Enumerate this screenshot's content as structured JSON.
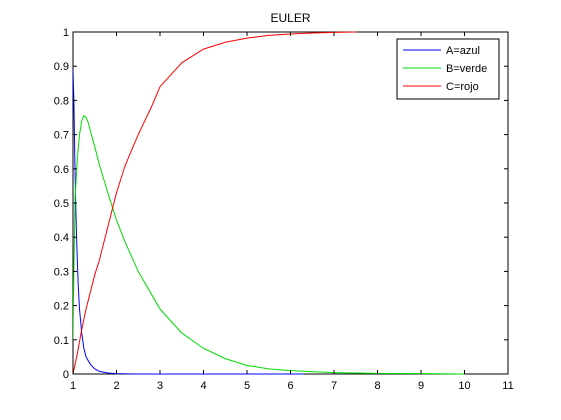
{
  "chart_data": {
    "type": "line",
    "title": "EULER",
    "xlabel": "",
    "ylabel": "",
    "xlim": [
      1,
      11
    ],
    "ylim": [
      0,
      1
    ],
    "xticks": [
      1,
      2,
      3,
      4,
      5,
      6,
      7,
      8,
      9,
      10,
      11
    ],
    "yticks": [
      0,
      0.1,
      0.2,
      0.3,
      0.4,
      0.5,
      0.6,
      0.7,
      0.8,
      0.9,
      1
    ],
    "xtick_labels": [
      "1",
      "2",
      "3",
      "4",
      "5",
      "6",
      "7",
      "8",
      "9",
      "10",
      "11"
    ],
    "ytick_labels": [
      "0",
      "0.1",
      "0.2",
      "0.3",
      "0.4",
      "0.5",
      "0.6",
      "0.7",
      "0.8",
      "0.9",
      "1"
    ],
    "grid": false,
    "legend_position": "top-right",
    "series": [
      {
        "name": "A=azul",
        "color": "#0000ff",
        "x": [
          1.0,
          1.02,
          1.04,
          1.06,
          1.08,
          1.1,
          1.12,
          1.15,
          1.2,
          1.25,
          1.3,
          1.4,
          1.5,
          1.6,
          1.8,
          2.0,
          2.5,
          3.0,
          4.0,
          5.0,
          6.0,
          6.3
        ],
        "values": [
          0.89,
          0.8,
          0.64,
          0.51,
          0.41,
          0.33,
          0.26,
          0.19,
          0.12,
          0.075,
          0.05,
          0.028,
          0.015,
          0.008,
          0.003,
          0.001,
          0.0,
          0.0,
          0.0,
          0.0,
          0.0,
          0.0
        ]
      },
      {
        "name": "B=verde",
        "color": "#00dd00",
        "x": [
          1.0,
          1.02,
          1.05,
          1.1,
          1.15,
          1.2,
          1.25,
          1.3,
          1.35,
          1.4,
          1.5,
          1.6,
          1.8,
          2.0,
          2.2,
          2.5,
          3.0,
          3.5,
          4.0,
          4.5,
          5.0,
          5.5,
          6.0,
          7.0,
          8.0,
          9.0,
          10.0
        ],
        "values": [
          0.1,
          0.3,
          0.52,
          0.63,
          0.7,
          0.74,
          0.755,
          0.75,
          0.735,
          0.71,
          0.665,
          0.615,
          0.53,
          0.45,
          0.385,
          0.3,
          0.19,
          0.12,
          0.075,
          0.045,
          0.025,
          0.015,
          0.01,
          0.004,
          0.002,
          0.001,
          0.0
        ]
      },
      {
        "name": "C=rojo",
        "color": "#ff0000",
        "x": [
          1.0,
          1.1,
          1.2,
          1.3,
          1.4,
          1.5,
          1.6,
          1.8,
          2.0,
          2.2,
          2.5,
          2.8,
          3.0,
          3.5,
          4.0,
          4.5,
          5.0,
          5.5,
          6.0,
          6.5,
          7.0,
          7.5
        ],
        "values": [
          0.0,
          0.06,
          0.13,
          0.19,
          0.24,
          0.29,
          0.33,
          0.43,
          0.53,
          0.61,
          0.7,
          0.78,
          0.84,
          0.91,
          0.95,
          0.97,
          0.982,
          0.99,
          0.994,
          0.997,
          0.999,
          1.0
        ]
      }
    ]
  }
}
